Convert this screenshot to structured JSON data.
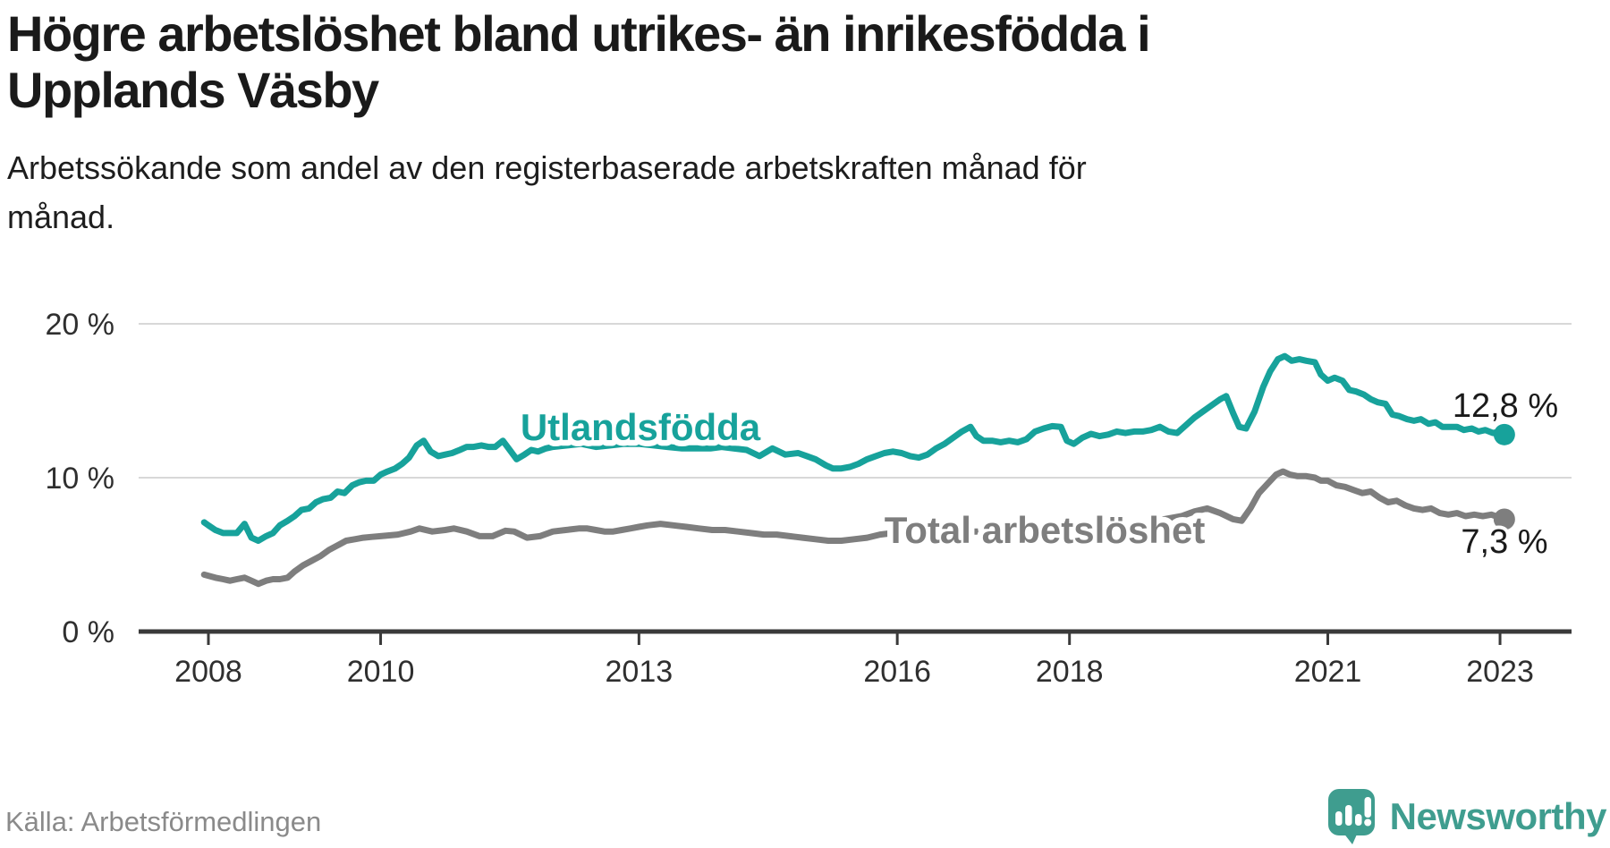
{
  "header": {
    "title": "Högre arbetslöshet bland utrikes- än inrikesfödda i Upplands Väsby",
    "title_lines": [
      "Högre arbetslöshet bland utrikes- än inrikesfödda i",
      "Upplands Väsby"
    ],
    "subtitle": "Arbetssökande som andel av den registerbaserade arbetskraften månad för månad.",
    "subtitle_lines": [
      "Arbetssökande som andel av den registerbaserade arbetskraften månad för",
      "månad."
    ]
  },
  "footer": {
    "source": "Källa: Arbetsförmedlingen",
    "brand": "Newsworthy"
  },
  "colors": {
    "accent_teal": "#17A29B",
    "line_gray": "#7E7E7E",
    "axis": "#3a3a3a",
    "grid": "#d8d8d8",
    "tick_text": "#2f2f2f",
    "value_text": "#1a1a1a",
    "logo_teal": "#3F9D8F",
    "source_text": "#8a8a8a"
  },
  "chart_data": {
    "type": "line",
    "title": "Högre arbetslöshet bland utrikes- än inrikesfödda i Upplands Väsby",
    "subtitle": "Arbetssökande som andel av den registerbaserade arbetskraften månad för månad.",
    "unit": "%",
    "grid": "horizontal",
    "legend": "inline-labels",
    "x_axis": {
      "ticks": [
        {
          "value": 2008,
          "label": "2008"
        },
        {
          "value": 2010,
          "label": "2010"
        },
        {
          "value": 2013,
          "label": "2013"
        },
        {
          "value": 2016,
          "label": "2016"
        },
        {
          "value": 2018,
          "label": "2018"
        },
        {
          "value": 2021,
          "label": "2021"
        },
        {
          "value": 2023,
          "label": "2023"
        }
      ],
      "range": [
        2007.9,
        2023.85
      ]
    },
    "y_axis": {
      "ticks": [
        {
          "value": 0,
          "label": "0 %"
        },
        {
          "value": 10,
          "label": "10 %"
        },
        {
          "value": 20,
          "label": "20 %"
        }
      ],
      "range": [
        0,
        20
      ]
    },
    "series": [
      {
        "name": "Utlandsfödda",
        "color": "#17A29B",
        "end_label": "12,8 %",
        "end_value": 12.8,
        "points": [
          [
            2007.95,
            7.1
          ],
          [
            2008.0,
            6.9
          ],
          [
            2008.08,
            6.6
          ],
          [
            2008.17,
            6.4
          ],
          [
            2008.25,
            6.4
          ],
          [
            2008.33,
            6.4
          ],
          [
            2008.42,
            7.0
          ],
          [
            2008.5,
            6.1
          ],
          [
            2008.58,
            5.9
          ],
          [
            2008.67,
            6.2
          ],
          [
            2008.75,
            6.4
          ],
          [
            2008.83,
            6.9
          ],
          [
            2008.92,
            7.2
          ],
          [
            2009.0,
            7.5
          ],
          [
            2009.08,
            7.9
          ],
          [
            2009.17,
            8.0
          ],
          [
            2009.25,
            8.4
          ],
          [
            2009.33,
            8.6
          ],
          [
            2009.42,
            8.7
          ],
          [
            2009.5,
            9.1
          ],
          [
            2009.58,
            9.0
          ],
          [
            2009.67,
            9.5
          ],
          [
            2009.75,
            9.7
          ],
          [
            2009.83,
            9.8
          ],
          [
            2009.92,
            9.8
          ],
          [
            2010.0,
            10.2
          ],
          [
            2010.08,
            10.4
          ],
          [
            2010.17,
            10.6
          ],
          [
            2010.25,
            10.9
          ],
          [
            2010.33,
            11.3
          ],
          [
            2010.42,
            12.1
          ],
          [
            2010.5,
            12.4
          ],
          [
            2010.58,
            11.7
          ],
          [
            2010.67,
            11.4
          ],
          [
            2010.75,
            11.5
          ],
          [
            2010.83,
            11.6
          ],
          [
            2010.92,
            11.8
          ],
          [
            2011.0,
            12.0
          ],
          [
            2011.08,
            12.0
          ],
          [
            2011.17,
            12.1
          ],
          [
            2011.25,
            12.0
          ],
          [
            2011.33,
            12.0
          ],
          [
            2011.42,
            12.4
          ],
          [
            2011.5,
            11.8
          ],
          [
            2011.58,
            11.2
          ],
          [
            2011.67,
            11.5
          ],
          [
            2011.75,
            11.8
          ],
          [
            2011.83,
            11.7
          ],
          [
            2011.92,
            11.9
          ],
          [
            2012.0,
            12.0
          ],
          [
            2012.17,
            12.1
          ],
          [
            2012.33,
            12.2
          ],
          [
            2012.5,
            12.0
          ],
          [
            2012.67,
            12.1
          ],
          [
            2012.83,
            12.2
          ],
          [
            2013.0,
            12.2
          ],
          [
            2013.17,
            12.1
          ],
          [
            2013.33,
            12.0
          ],
          [
            2013.5,
            11.9
          ],
          [
            2013.67,
            11.9
          ],
          [
            2013.83,
            11.9
          ],
          [
            2013.96,
            12.0
          ],
          [
            2014.1,
            11.9
          ],
          [
            2014.25,
            11.8
          ],
          [
            2014.4,
            11.4
          ],
          [
            2014.55,
            11.9
          ],
          [
            2014.7,
            11.5
          ],
          [
            2014.85,
            11.6
          ],
          [
            2014.95,
            11.4
          ],
          [
            2015.05,
            11.2
          ],
          [
            2015.17,
            10.8
          ],
          [
            2015.25,
            10.6
          ],
          [
            2015.35,
            10.6
          ],
          [
            2015.45,
            10.7
          ],
          [
            2015.55,
            10.9
          ],
          [
            2015.65,
            11.2
          ],
          [
            2015.75,
            11.4
          ],
          [
            2015.85,
            11.6
          ],
          [
            2015.95,
            11.7
          ],
          [
            2016.05,
            11.6
          ],
          [
            2016.15,
            11.4
          ],
          [
            2016.25,
            11.3
          ],
          [
            2016.35,
            11.5
          ],
          [
            2016.45,
            11.9
          ],
          [
            2016.55,
            12.2
          ],
          [
            2016.65,
            12.6
          ],
          [
            2016.75,
            13.0
          ],
          [
            2016.85,
            13.3
          ],
          [
            2016.92,
            12.7
          ],
          [
            2017.0,
            12.4
          ],
          [
            2017.1,
            12.4
          ],
          [
            2017.2,
            12.3
          ],
          [
            2017.3,
            12.4
          ],
          [
            2017.4,
            12.3
          ],
          [
            2017.5,
            12.5
          ],
          [
            2017.6,
            13.0
          ],
          [
            2017.7,
            13.2
          ],
          [
            2017.8,
            13.35
          ],
          [
            2017.9,
            13.3
          ],
          [
            2017.97,
            12.4
          ],
          [
            2018.05,
            12.2
          ],
          [
            2018.15,
            12.6
          ],
          [
            2018.25,
            12.85
          ],
          [
            2018.35,
            12.7
          ],
          [
            2018.45,
            12.8
          ],
          [
            2018.55,
            13.0
          ],
          [
            2018.65,
            12.9
          ],
          [
            2018.75,
            13.0
          ],
          [
            2018.85,
            13.0
          ],
          [
            2018.95,
            13.1
          ],
          [
            2019.05,
            13.3
          ],
          [
            2019.15,
            13.0
          ],
          [
            2019.25,
            12.9
          ],
          [
            2019.35,
            13.4
          ],
          [
            2019.45,
            13.9
          ],
          [
            2019.55,
            14.3
          ],
          [
            2019.65,
            14.7
          ],
          [
            2019.75,
            15.1
          ],
          [
            2019.82,
            15.3
          ],
          [
            2019.9,
            14.2
          ],
          [
            2019.97,
            13.3
          ],
          [
            2020.05,
            13.2
          ],
          [
            2020.15,
            14.3
          ],
          [
            2020.25,
            15.9
          ],
          [
            2020.33,
            16.9
          ],
          [
            2020.42,
            17.7
          ],
          [
            2020.5,
            17.9
          ],
          [
            2020.58,
            17.6
          ],
          [
            2020.67,
            17.7
          ],
          [
            2020.75,
            17.6
          ],
          [
            2020.85,
            17.5
          ],
          [
            2020.92,
            16.7
          ],
          [
            2021.0,
            16.3
          ],
          [
            2021.08,
            16.5
          ],
          [
            2021.17,
            16.3
          ],
          [
            2021.25,
            15.7
          ],
          [
            2021.33,
            15.6
          ],
          [
            2021.42,
            15.4
          ],
          [
            2021.5,
            15.1
          ],
          [
            2021.58,
            14.9
          ],
          [
            2021.67,
            14.8
          ],
          [
            2021.75,
            14.1
          ],
          [
            2021.83,
            14.0
          ],
          [
            2021.92,
            13.8
          ],
          [
            2022.0,
            13.7
          ],
          [
            2022.08,
            13.8
          ],
          [
            2022.17,
            13.5
          ],
          [
            2022.25,
            13.6
          ],
          [
            2022.33,
            13.3
          ],
          [
            2022.42,
            13.3
          ],
          [
            2022.5,
            13.3
          ],
          [
            2022.58,
            13.1
          ],
          [
            2022.67,
            13.2
          ],
          [
            2022.75,
            13.0
          ],
          [
            2022.83,
            13.1
          ],
          [
            2022.92,
            12.9
          ],
          [
            2023.0,
            13.0
          ],
          [
            2023.05,
            12.8
          ]
        ]
      },
      {
        "name": "Total arbetslöshet",
        "color": "#7E7E7E",
        "end_label": "7,3 %",
        "end_value": 7.3,
        "points": [
          [
            2007.95,
            3.7
          ],
          [
            2008.08,
            3.5
          ],
          [
            2008.17,
            3.4
          ],
          [
            2008.25,
            3.3
          ],
          [
            2008.33,
            3.4
          ],
          [
            2008.42,
            3.5
          ],
          [
            2008.5,
            3.3
          ],
          [
            2008.58,
            3.1
          ],
          [
            2008.67,
            3.3
          ],
          [
            2008.75,
            3.4
          ],
          [
            2008.83,
            3.4
          ],
          [
            2008.92,
            3.5
          ],
          [
            2009.0,
            3.9
          ],
          [
            2009.1,
            4.3
          ],
          [
            2009.2,
            4.6
          ],
          [
            2009.3,
            4.9
          ],
          [
            2009.4,
            5.3
          ],
          [
            2009.5,
            5.6
          ],
          [
            2009.6,
            5.9
          ],
          [
            2009.7,
            6.0
          ],
          [
            2009.8,
            6.1
          ],
          [
            2009.9,
            6.15
          ],
          [
            2010.0,
            6.2
          ],
          [
            2010.1,
            6.25
          ],
          [
            2010.2,
            6.3
          ],
          [
            2010.35,
            6.5
          ],
          [
            2010.45,
            6.7
          ],
          [
            2010.6,
            6.5
          ],
          [
            2010.75,
            6.6
          ],
          [
            2010.85,
            6.7
          ],
          [
            2011.0,
            6.5
          ],
          [
            2011.15,
            6.2
          ],
          [
            2011.3,
            6.2
          ],
          [
            2011.45,
            6.55
          ],
          [
            2011.55,
            6.5
          ],
          [
            2011.7,
            6.1
          ],
          [
            2011.85,
            6.2
          ],
          [
            2012.0,
            6.5
          ],
          [
            2012.15,
            6.6
          ],
          [
            2012.3,
            6.7
          ],
          [
            2012.4,
            6.7
          ],
          [
            2012.5,
            6.6
          ],
          [
            2012.6,
            6.5
          ],
          [
            2012.7,
            6.5
          ],
          [
            2012.8,
            6.6
          ],
          [
            2012.9,
            6.7
          ],
          [
            2013.0,
            6.8
          ],
          [
            2013.1,
            6.9
          ],
          [
            2013.25,
            7.0
          ],
          [
            2013.4,
            6.9
          ],
          [
            2013.55,
            6.8
          ],
          [
            2013.7,
            6.7
          ],
          [
            2013.85,
            6.6
          ],
          [
            2014.0,
            6.6
          ],
          [
            2014.15,
            6.5
          ],
          [
            2014.3,
            6.4
          ],
          [
            2014.45,
            6.3
          ],
          [
            2014.6,
            6.3
          ],
          [
            2014.75,
            6.2
          ],
          [
            2014.9,
            6.1
          ],
          [
            2015.05,
            6.0
          ],
          [
            2015.2,
            5.9
          ],
          [
            2015.35,
            5.9
          ],
          [
            2015.5,
            6.0
          ],
          [
            2015.65,
            6.1
          ],
          [
            2015.8,
            6.3
          ],
          [
            2015.95,
            6.4
          ],
          [
            2016.1,
            6.4
          ],
          [
            2016.3,
            6.5
          ],
          [
            2016.5,
            6.5
          ],
          [
            2016.7,
            6.4
          ],
          [
            2016.9,
            6.5
          ],
          [
            2017.1,
            6.5
          ],
          [
            2017.3,
            6.6
          ],
          [
            2017.5,
            6.5
          ],
          [
            2017.7,
            6.6
          ],
          [
            2017.9,
            6.6
          ],
          [
            2018.1,
            6.7
          ],
          [
            2018.3,
            6.8
          ],
          [
            2018.5,
            6.9
          ],
          [
            2018.7,
            7.0
          ],
          [
            2018.9,
            7.1
          ],
          [
            2019.1,
            7.3
          ],
          [
            2019.3,
            7.5
          ],
          [
            2019.45,
            7.8
          ],
          [
            2019.6,
            8.0
          ],
          [
            2019.75,
            7.7
          ],
          [
            2019.9,
            7.3
          ],
          [
            2020.0,
            7.2
          ],
          [
            2020.1,
            8.0
          ],
          [
            2020.2,
            9.0
          ],
          [
            2020.3,
            9.6
          ],
          [
            2020.4,
            10.2
          ],
          [
            2020.48,
            10.4
          ],
          [
            2020.56,
            10.2
          ],
          [
            2020.65,
            10.1
          ],
          [
            2020.75,
            10.1
          ],
          [
            2020.85,
            10.0
          ],
          [
            2020.92,
            9.8
          ],
          [
            2021.0,
            9.8
          ],
          [
            2021.1,
            9.5
          ],
          [
            2021.2,
            9.4
          ],
          [
            2021.3,
            9.2
          ],
          [
            2021.4,
            9.0
          ],
          [
            2021.5,
            9.1
          ],
          [
            2021.6,
            8.7
          ],
          [
            2021.7,
            8.4
          ],
          [
            2021.8,
            8.5
          ],
          [
            2021.9,
            8.2
          ],
          [
            2022.0,
            8.0
          ],
          [
            2022.1,
            7.9
          ],
          [
            2022.2,
            8.0
          ],
          [
            2022.3,
            7.7
          ],
          [
            2022.4,
            7.6
          ],
          [
            2022.5,
            7.7
          ],
          [
            2022.6,
            7.5
          ],
          [
            2022.7,
            7.6
          ],
          [
            2022.8,
            7.5
          ],
          [
            2022.9,
            7.6
          ],
          [
            2023.0,
            7.4
          ],
          [
            2023.05,
            7.3
          ]
        ]
      }
    ]
  }
}
